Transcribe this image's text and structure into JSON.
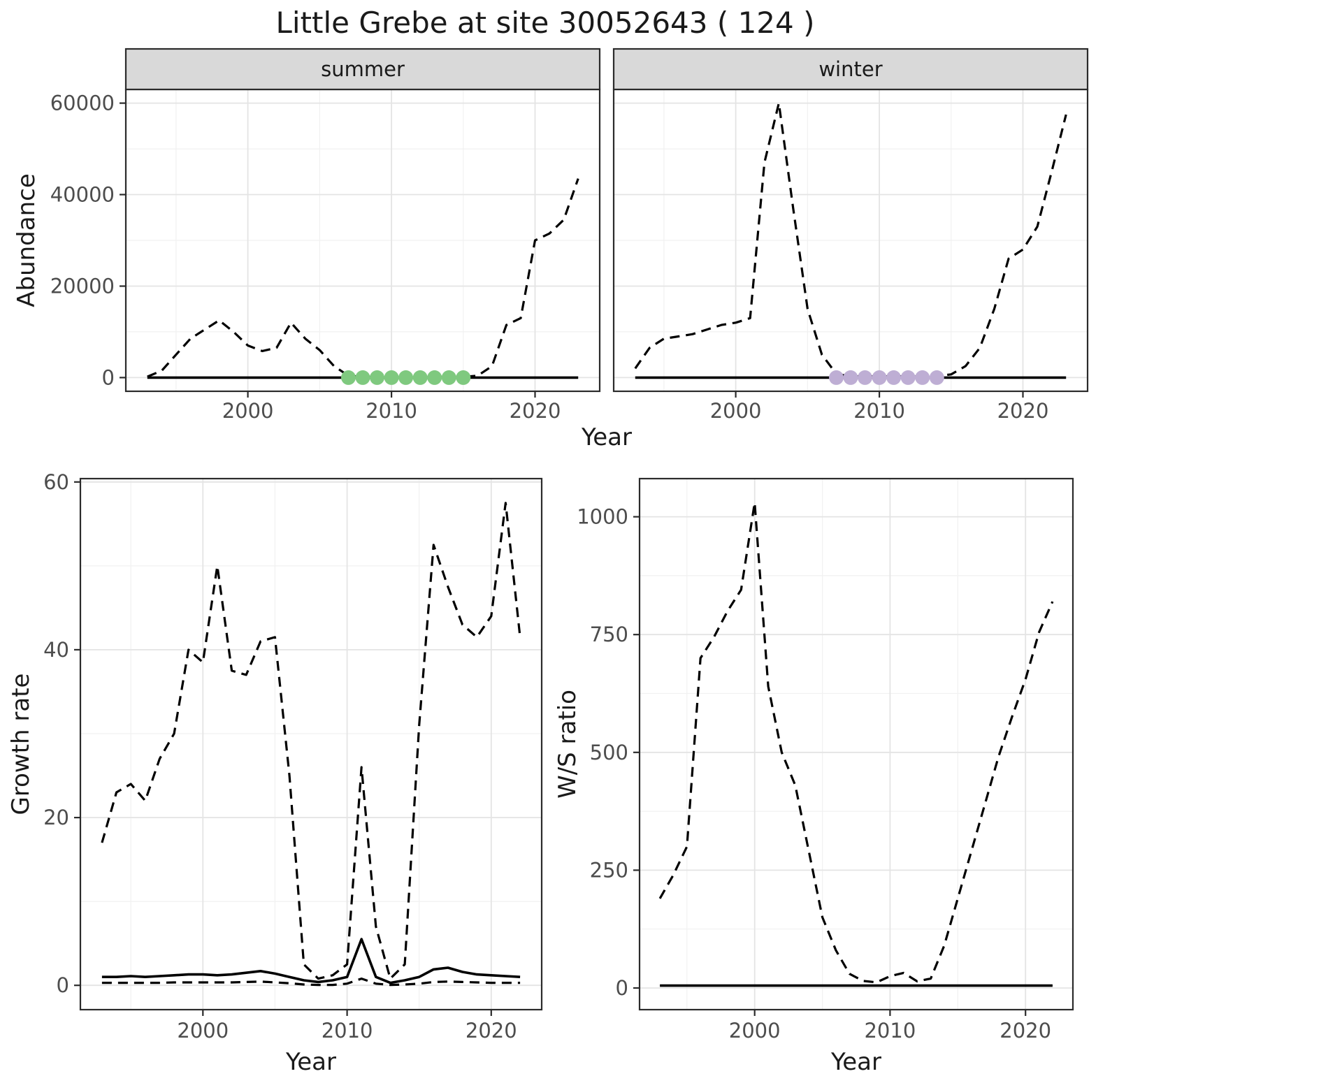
{
  "title": "Little Grebe at site 30052643 ( 124 )",
  "colors": {
    "summer_points": "#7FC97F",
    "winter_points": "#BEAED4",
    "line": "#000000",
    "grid_major": "#E4E4E4",
    "grid_minor": "#F1F1F1",
    "strip_fill": "#D9D9D9",
    "panel_border": "#2B2B2B",
    "tick_text": "#4D4D4D",
    "title_text": "#1A1A1A"
  },
  "chart_data": [
    {
      "id": "abundance-summer",
      "type": "line",
      "facet_label": "summer",
      "xlabel": "Year",
      "ylabel": "Abundance",
      "xlim": [
        1991.5,
        2024.5
      ],
      "ylim": [
        -3000,
        63000
      ],
      "xticks": [
        2000,
        2010,
        2020
      ],
      "xminor": [
        1995,
        2005,
        2015
      ],
      "yticks": [
        0,
        20000,
        40000,
        60000
      ],
      "yminor": [
        10000,
        30000,
        50000
      ],
      "x": [
        1993,
        1994,
        1995,
        1996,
        1997,
        1998,
        1999,
        2000,
        2001,
        2002,
        2003,
        2004,
        2005,
        2006,
        2007,
        2008,
        2009,
        2010,
        2011,
        2012,
        2013,
        2014,
        2015,
        2016,
        2017,
        2018,
        2019,
        2020,
        2021,
        2022,
        2023
      ],
      "series": [
        {
          "name": "dashed-estimate",
          "style": "dashed",
          "values": [
            200,
            1500,
            5000,
            8500,
            10500,
            12500,
            10000,
            7000,
            5800,
            6500,
            12000,
            8500,
            6000,
            2500,
            400,
            150,
            150,
            150,
            150,
            150,
            150,
            150,
            150,
            400,
            2500,
            11500,
            13000,
            30000,
            31500,
            34500,
            43500
          ]
        },
        {
          "name": "solid-baseline",
          "style": "solid",
          "values": [
            0,
            0,
            0,
            0,
            0,
            0,
            0,
            0,
            0,
            0,
            0,
            0,
            0,
            0,
            0,
            0,
            0,
            0,
            0,
            0,
            0,
            0,
            0,
            0,
            0,
            0,
            0,
            0,
            0,
            0,
            0
          ]
        }
      ],
      "points": {
        "name": "flagged-years",
        "color_key": "summer_points",
        "x": [
          2007,
          2008,
          2009,
          2010,
          2011,
          2012,
          2013,
          2014,
          2015
        ],
        "y": [
          0,
          0,
          0,
          0,
          0,
          0,
          0,
          0,
          0
        ]
      }
    },
    {
      "id": "abundance-winter",
      "type": "line",
      "facet_label": "winter",
      "xlabel": "Year",
      "ylabel": "Abundance",
      "xlim": [
        1991.5,
        2024.5
      ],
      "ylim": [
        -3000,
        63000
      ],
      "xticks": [
        2000,
        2010,
        2020
      ],
      "xminor": [
        1995,
        2005,
        2015
      ],
      "yticks": [
        0,
        20000,
        40000,
        60000
      ],
      "yminor": [
        10000,
        30000,
        50000
      ],
      "x": [
        1993,
        1994,
        1995,
        1996,
        1997,
        1998,
        1999,
        2000,
        2001,
        2002,
        2003,
        2004,
        2005,
        2006,
        2007,
        2008,
        2009,
        2010,
        2011,
        2012,
        2013,
        2014,
        2015,
        2016,
        2017,
        2018,
        2019,
        2020,
        2021,
        2022,
        2023
      ],
      "series": [
        {
          "name": "dashed-estimate",
          "style": "dashed",
          "values": [
            2000,
            6500,
            8500,
            9000,
            9500,
            10500,
            11500,
            12000,
            13000,
            47000,
            60000,
            37000,
            15000,
            5000,
            800,
            250,
            250,
            250,
            250,
            250,
            250,
            300,
            700,
            2500,
            6500,
            15000,
            26000,
            28000,
            33000,
            45000,
            57500
          ]
        },
        {
          "name": "solid-baseline",
          "style": "solid",
          "values": [
            0,
            0,
            0,
            0,
            0,
            0,
            0,
            0,
            0,
            0,
            0,
            0,
            0,
            0,
            0,
            0,
            0,
            0,
            0,
            0,
            0,
            0,
            0,
            0,
            0,
            0,
            0,
            0,
            0,
            0,
            0
          ]
        }
      ],
      "points": {
        "name": "flagged-years",
        "color_key": "winter_points",
        "x": [
          2007,
          2008,
          2009,
          2010,
          2011,
          2012,
          2013,
          2014
        ],
        "y": [
          0,
          0,
          0,
          0,
          0,
          0,
          0,
          0
        ]
      }
    },
    {
      "id": "growth-rate",
      "type": "line",
      "facet_label": "",
      "xlabel": "Year",
      "ylabel": "Growth rate",
      "xlim": [
        1991.5,
        2023.5
      ],
      "ylim": [
        -2.9,
        60.4
      ],
      "xticks": [
        2000,
        2010,
        2020
      ],
      "xminor": [
        1995,
        2005,
        2015
      ],
      "yticks": [
        0,
        20,
        40,
        60
      ],
      "yminor": [
        10,
        30,
        50
      ],
      "x": [
        1993,
        1994,
        1995,
        1996,
        1997,
        1998,
        1999,
        2000,
        2001,
        2002,
        2003,
        2004,
        2005,
        2006,
        2007,
        2008,
        2009,
        2010,
        2011,
        2012,
        2013,
        2014,
        2015,
        2016,
        2017,
        2018,
        2019,
        2020,
        2021,
        2022
      ],
      "series": [
        {
          "name": "dashed-upper",
          "style": "dashed",
          "values": [
            17,
            23,
            24,
            22,
            27,
            30,
            40,
            38.5,
            50,
            37.5,
            37,
            41,
            41.5,
            25,
            2.5,
            0.8,
            1.2,
            2.5,
            26,
            7,
            0.8,
            2.5,
            31,
            52.5,
            47.5,
            43,
            41.5,
            44,
            57.5,
            41.5
          ]
        },
        {
          "name": "solid-mean",
          "style": "solid",
          "values": [
            1,
            1,
            1.1,
            1,
            1.1,
            1.2,
            1.3,
            1.3,
            1.2,
            1.3,
            1.5,
            1.7,
            1.4,
            1,
            0.6,
            0.4,
            0.6,
            1,
            5.5,
            1,
            0.3,
            0.6,
            1,
            1.9,
            2.1,
            1.6,
            1.3,
            1.2,
            1.1,
            1
          ]
        },
        {
          "name": "dashed-lower",
          "style": "dashed",
          "values": [
            0.3,
            0.3,
            0.3,
            0.3,
            0.3,
            0.35,
            0.35,
            0.35,
            0.35,
            0.35,
            0.4,
            0.45,
            0.35,
            0.25,
            0.1,
            0.05,
            0.05,
            0.2,
            0.8,
            0.2,
            0.05,
            0.1,
            0.2,
            0.4,
            0.45,
            0.4,
            0.35,
            0.3,
            0.3,
            0.3
          ]
        }
      ]
    },
    {
      "id": "ws-ratio",
      "type": "line",
      "facet_label": "",
      "xlabel": "Year",
      "ylabel": "W/S ratio",
      "xlim": [
        1991.5,
        2023.5
      ],
      "ylim": [
        -46,
        1081
      ],
      "xticks": [
        2000,
        2010,
        2020
      ],
      "xminor": [
        1995,
        2005,
        2015
      ],
      "yticks": [
        0,
        250,
        500,
        750,
        1000
      ],
      "yminor": [
        125,
        375,
        625,
        875
      ],
      "x": [
        1993,
        1994,
        1995,
        1996,
        1997,
        1998,
        1999,
        2000,
        2001,
        2002,
        2003,
        2004,
        2005,
        2006,
        2007,
        2008,
        2009,
        2010,
        2011,
        2012,
        2013,
        2014,
        2015,
        2016,
        2017,
        2018,
        2019,
        2020,
        2021,
        2022
      ],
      "series": [
        {
          "name": "dashed-ratio",
          "style": "dashed",
          "values": [
            190,
            240,
            300,
            700,
            745,
            800,
            845,
            1030,
            640,
            500,
            430,
            290,
            150,
            80,
            30,
            15,
            12,
            25,
            32,
            14,
            20,
            90,
            190,
            290,
            390,
            490,
            575,
            655,
            755,
            820
          ]
        },
        {
          "name": "solid-baseline",
          "style": "solid",
          "values": [
            5,
            5,
            5,
            5,
            5,
            5,
            5,
            5,
            5,
            5,
            5,
            5,
            5,
            5,
            5,
            5,
            5,
            5,
            5,
            5,
            5,
            5,
            5,
            5,
            5,
            5,
            5,
            5,
            5,
            5
          ]
        }
      ]
    }
  ]
}
